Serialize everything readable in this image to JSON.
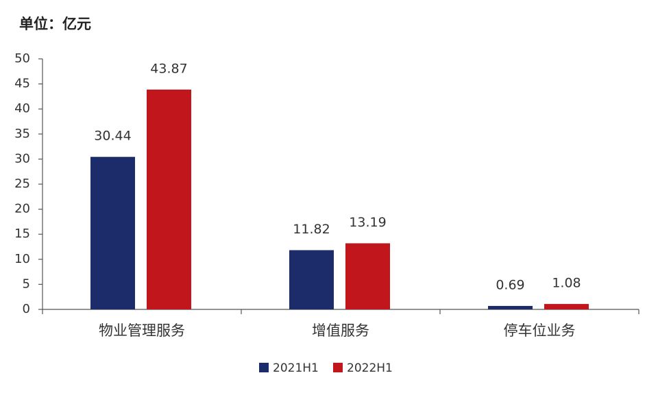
{
  "chart_data": {
    "type": "bar",
    "ylabel": "单位：亿元",
    "categories": [
      "物业管理服务",
      "增值服务",
      "停车位业务"
    ],
    "series": [
      {
        "name": "2021H1",
        "color": "#1c2c6b",
        "values": [
          30.44,
          11.82,
          0.69
        ]
      },
      {
        "name": "2022H1",
        "color": "#c0161c",
        "values": [
          43.87,
          13.19,
          1.08
        ]
      }
    ],
    "ylim": [
      0,
      50
    ],
    "yticks": [
      0,
      5,
      10,
      15,
      20,
      25,
      30,
      35,
      40,
      45,
      50
    ],
    "grid": false,
    "legend": "bottom"
  }
}
